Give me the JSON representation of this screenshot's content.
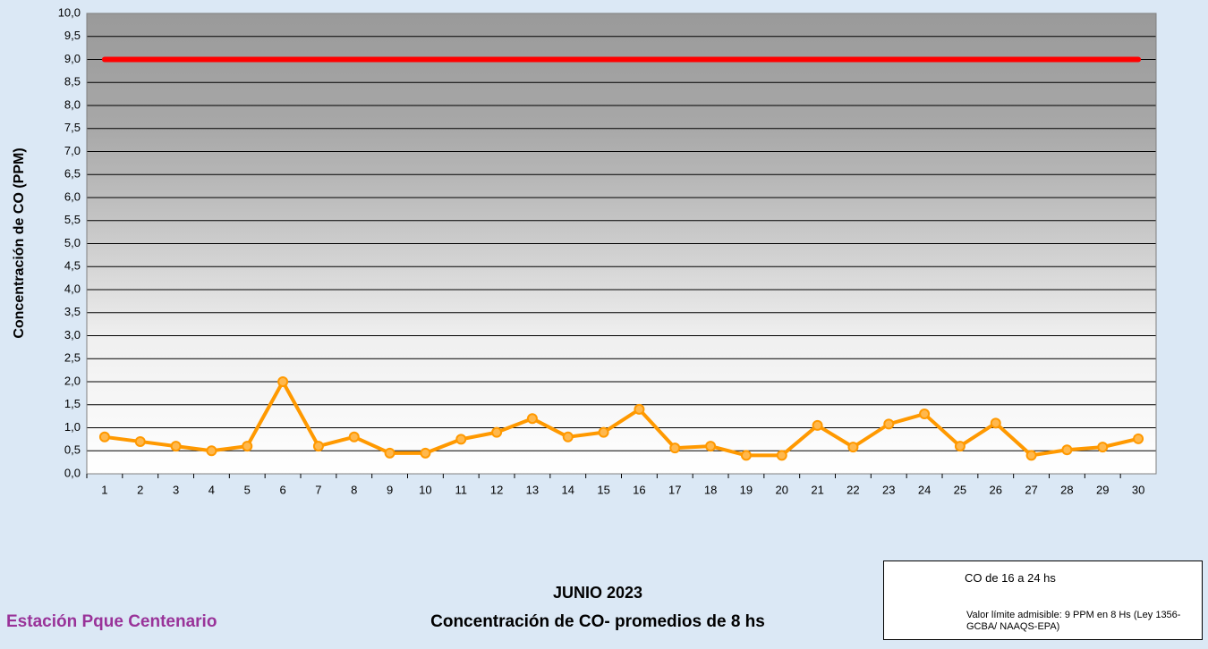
{
  "chart_data": {
    "type": "line",
    "title": "JUNIO 2023",
    "subtitle": "Concentración de CO- promedios de 8 hs",
    "station": "Estación Pque Centenario",
    "y_label": "Concentración de CO (PPM)",
    "categories": [
      "1",
      "2",
      "3",
      "4",
      "5",
      "6",
      "7",
      "8",
      "9",
      "10",
      "11",
      "12",
      "13",
      "14",
      "15",
      "16",
      "17",
      "18",
      "19",
      "20",
      "21",
      "22",
      "23",
      "24",
      "25",
      "26",
      "27",
      "28",
      "29",
      "30"
    ],
    "series": [
      {
        "name": "CO de 16 a 24 hs",
        "color": "#ff9900",
        "markers": true,
        "values": [
          0.8,
          0.7,
          0.6,
          0.5,
          0.6,
          2.0,
          0.6,
          0.8,
          0.45,
          0.45,
          0.75,
          0.9,
          1.2,
          0.8,
          0.9,
          1.4,
          0.56,
          0.6,
          0.4,
          0.4,
          1.05,
          0.58,
          1.08,
          1.3,
          0.6,
          1.1,
          0.4,
          0.52,
          0.58,
          0.76
        ]
      },
      {
        "name": "Valor límite admisible: 9 PPM en 8 Hs (Ley 1356-GCBA/ NAAQS-EPA)",
        "color": "#ff0000",
        "markers": false,
        "values": [
          9,
          9,
          9,
          9,
          9,
          9,
          9,
          9,
          9,
          9,
          9,
          9,
          9,
          9,
          9,
          9,
          9,
          9,
          9,
          9,
          9,
          9,
          9,
          9,
          9,
          9,
          9,
          9,
          9,
          9
        ]
      }
    ],
    "ylim": [
      0,
      10
    ],
    "yticks": [
      {
        "value": 0,
        "label": "0,0"
      },
      {
        "value": 0.5,
        "label": "0,5"
      },
      {
        "value": 1,
        "label": "1,0"
      },
      {
        "value": 1.5,
        "label": "1,5"
      },
      {
        "value": 2,
        "label": "2,0"
      },
      {
        "value": 2.5,
        "label": "2,5"
      },
      {
        "value": 3,
        "label": "3,0"
      },
      {
        "value": 3.5,
        "label": "3,5"
      },
      {
        "value": 4,
        "label": "4,0"
      },
      {
        "value": 4.5,
        "label": "4,5"
      },
      {
        "value": 5,
        "label": "5,0"
      },
      {
        "value": 5.5,
        "label": "5,5"
      },
      {
        "value": 6,
        "label": "6,0"
      },
      {
        "value": 6.5,
        "label": "6,5"
      },
      {
        "value": 7,
        "label": "7,0"
      },
      {
        "value": 7.5,
        "label": "7,5"
      },
      {
        "value": 8,
        "label": "8,0"
      },
      {
        "value": 8.5,
        "label": "8,5"
      },
      {
        "value": 9,
        "label": "9,0"
      },
      {
        "value": 9.5,
        "label": "9,5"
      },
      {
        "value": 10,
        "label": "10,0"
      }
    ],
    "grid": true
  }
}
